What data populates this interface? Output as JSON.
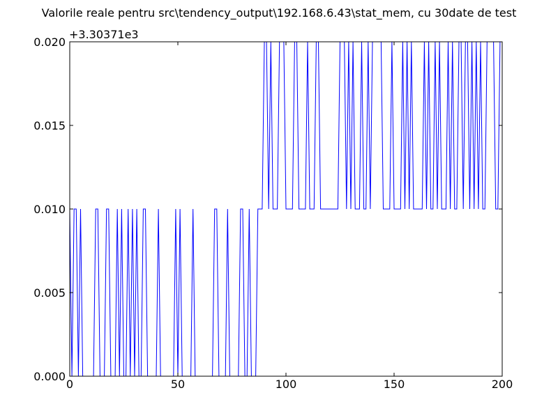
{
  "chart_data": {
    "type": "line",
    "title": "Valorile reale pentru src\\tendency_output\\192.168.6.43\\stat_mem, cu 30date de test",
    "offset_label": "+3.30371e3",
    "xlabel": "",
    "ylabel": "",
    "xlim": [
      0,
      200
    ],
    "ylim": [
      0.0,
      0.02
    ],
    "grid": false,
    "xticks": [
      0,
      50,
      100,
      150,
      200
    ],
    "xtick_labels": [
      "0",
      "50",
      "100",
      "150",
      "200"
    ],
    "yticks": [
      0.0,
      0.005,
      0.01,
      0.015,
      0.02
    ],
    "ytick_labels": [
      "0.000",
      "0.005",
      "0.010",
      "0.015",
      "0.020"
    ],
    "line_color": "#0000ff",
    "series": [
      {
        "name": "",
        "x": [
          0,
          1,
          2,
          3,
          4,
          5,
          6,
          7,
          8,
          9,
          10,
          11,
          12,
          13,
          14,
          15,
          16,
          17,
          18,
          19,
          20,
          21,
          22,
          23,
          24,
          25,
          26,
          27,
          28,
          29,
          30,
          31,
          32,
          33,
          34,
          35,
          36,
          37,
          38,
          39,
          40,
          41,
          42,
          43,
          44,
          45,
          46,
          47,
          48,
          49,
          50,
          51,
          52,
          53,
          54,
          55,
          56,
          57,
          58,
          59,
          60,
          61,
          62,
          63,
          64,
          65,
          66,
          67,
          68,
          69,
          70,
          71,
          72,
          73,
          74,
          75,
          76,
          77,
          78,
          79,
          80,
          81,
          82,
          83,
          84,
          85,
          86,
          87,
          88,
          89,
          90,
          91,
          92,
          93,
          94,
          95,
          96,
          97,
          98,
          99,
          100,
          101,
          102,
          103,
          104,
          105,
          106,
          107,
          108,
          109,
          110,
          111,
          112,
          113,
          114,
          115,
          116,
          117,
          118,
          119,
          120,
          121,
          122,
          123,
          124,
          125,
          126,
          127,
          128,
          129,
          130,
          131,
          132,
          133,
          134,
          135,
          136,
          137,
          138,
          139,
          140,
          141,
          142,
          143,
          144,
          145,
          146,
          147,
          148,
          149,
          150,
          151,
          152,
          153,
          154,
          155,
          156,
          157,
          158,
          159,
          160,
          161,
          162,
          163,
          164,
          165,
          166,
          167,
          168,
          169,
          170,
          171,
          172,
          173,
          174,
          175,
          176,
          177,
          178,
          179,
          180,
          181,
          182,
          183,
          184,
          185,
          186,
          187,
          188,
          189,
          190,
          191,
          192,
          193,
          194,
          195,
          196,
          197,
          198,
          199,
          200
        ],
        "y": [
          0.01,
          0,
          0.01,
          0.01,
          0,
          0.01,
          0,
          0,
          0,
          0,
          0,
          0,
          0.01,
          0.01,
          0,
          0,
          0,
          0.01,
          0.01,
          0,
          0,
          0,
          0.01,
          0,
          0.01,
          0,
          0,
          0.01,
          0,
          0.01,
          0,
          0.01,
          0,
          0,
          0.01,
          0.01,
          0,
          0,
          0,
          0,
          0,
          0.01,
          0,
          0,
          0,
          0,
          0,
          0,
          0,
          0.01,
          0,
          0.01,
          0,
          0,
          0,
          0,
          0,
          0.01,
          0,
          0,
          0,
          0,
          0,
          0,
          0,
          0,
          0,
          0.01,
          0.01,
          0,
          0,
          0,
          0,
          0.01,
          0,
          0,
          0,
          0,
          0,
          0.01,
          0.01,
          0,
          0,
          0.01,
          0,
          0,
          0,
          0.01,
          0.01,
          0.01,
          0.02,
          0.02,
          0.01,
          0.02,
          0.01,
          0.01,
          0.01,
          0.02,
          0.02,
          0.02,
          0.01,
          0.01,
          0.01,
          0.01,
          0.02,
          0.02,
          0.01,
          0.01,
          0.01,
          0.01,
          0.02,
          0.01,
          0.01,
          0.01,
          0.02,
          0.02,
          0.01,
          0.01,
          0.01,
          0.01,
          0.01,
          0.01,
          0.01,
          0.01,
          0.01,
          0.02,
          0.02,
          0.02,
          0.01,
          0.02,
          0.01,
          0.02,
          0.01,
          0.01,
          0.01,
          0.02,
          0.01,
          0.01,
          0.02,
          0.01,
          0.02,
          0.02,
          0.02,
          0.02,
          0.02,
          0.01,
          0.01,
          0.01,
          0.01,
          0.02,
          0.01,
          0.01,
          0.01,
          0.01,
          0.02,
          0.01,
          0.02,
          0.01,
          0.02,
          0.01,
          0.01,
          0.01,
          0.01,
          0.01,
          0.02,
          0.01,
          0.02,
          0.01,
          0.01,
          0.02,
          0.01,
          0.02,
          0.01,
          0.01,
          0.01,
          0.02,
          0.01,
          0.02,
          0.01,
          0.01,
          0.02,
          0.02,
          0.01,
          0.02,
          0.02,
          0.01,
          0.02,
          0.01,
          0.02,
          0.01,
          0.02,
          0.01,
          0.01,
          0.02,
          0.02,
          0.02,
          0.02,
          0.01,
          0.01,
          0.02,
          0.02
        ]
      }
    ]
  }
}
